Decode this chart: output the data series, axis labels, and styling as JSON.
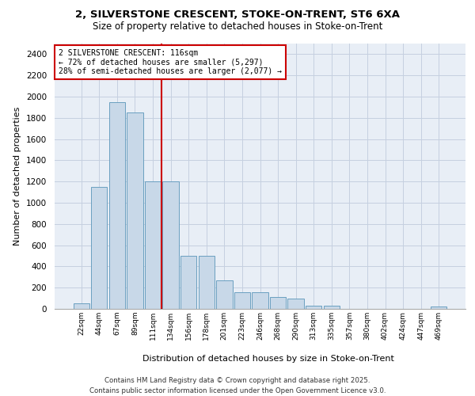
{
  "title_line1": "2, SILVERSTONE CRESCENT, STOKE-ON-TRENT, ST6 6XA",
  "title_line2": "Size of property relative to detached houses in Stoke-on-Trent",
  "xlabel": "Distribution of detached houses by size in Stoke-on-Trent",
  "ylabel": "Number of detached properties",
  "categories": [
    "22sqm",
    "44sqm",
    "67sqm",
    "89sqm",
    "111sqm",
    "134sqm",
    "156sqm",
    "178sqm",
    "201sqm",
    "223sqm",
    "246sqm",
    "268sqm",
    "290sqm",
    "313sqm",
    "335sqm",
    "357sqm",
    "380sqm",
    "402sqm",
    "424sqm",
    "447sqm",
    "469sqm"
  ],
  "values": [
    50,
    1150,
    1950,
    1850,
    1200,
    1200,
    500,
    500,
    270,
    160,
    160,
    110,
    100,
    30,
    30,
    0,
    0,
    0,
    0,
    0,
    20
  ],
  "bar_color": "#c8d8e8",
  "bar_edge_color": "#6a9fc0",
  "grid_color": "#c5d0e0",
  "background_color": "#e8eef6",
  "vline_x": 4.5,
  "vline_color": "#cc0000",
  "annotation_text": "2 SILVERSTONE CRESCENT: 116sqm\n← 72% of detached houses are smaller (5,297)\n28% of semi-detached houses are larger (2,077) →",
  "footer_line1": "Contains HM Land Registry data © Crown copyright and database right 2025.",
  "footer_line2": "Contains public sector information licensed under the Open Government Licence v3.0.",
  "ylim": [
    0,
    2500
  ],
  "yticks": [
    0,
    200,
    400,
    600,
    800,
    1000,
    1200,
    1400,
    1600,
    1800,
    2000,
    2200,
    2400
  ]
}
